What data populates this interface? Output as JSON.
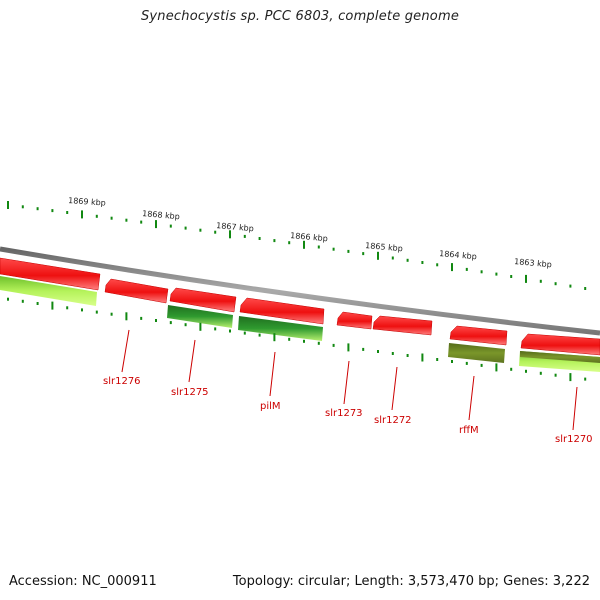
{
  "title": "Synechocystis sp. PCC 6803, complete genome",
  "footer": {
    "accession": "Accession: NC_000911",
    "summary": "Topology: circular; Length: 3,573,470 bp; Genes: 3,222"
  },
  "scale": {
    "labels": [
      "1869 kbp",
      "1868 kbp",
      "1867 kbp",
      "1866 kbp",
      "1865 kbp",
      "1864 kbp",
      "1863 kbp"
    ]
  },
  "genes": [
    {
      "name": "slr1276",
      "strand": "reverse"
    },
    {
      "name": "slr1275",
      "strand": "reverse"
    },
    {
      "name": "pilM",
      "strand": "reverse"
    },
    {
      "name": "slr1273",
      "strand": "reverse"
    },
    {
      "name": "slr1272",
      "strand": "reverse"
    },
    {
      "name": "rffM",
      "strand": "reverse"
    },
    {
      "name": "slr1270",
      "strand": "reverse"
    }
  ],
  "colors": {
    "gene_arrow": "#ee1111",
    "label": "#cc0000",
    "tick": "#118811",
    "backbone": "#888888",
    "light_green": "#aaf050",
    "dark_green": "#2d8a2d",
    "olive": "#6d8a22"
  }
}
